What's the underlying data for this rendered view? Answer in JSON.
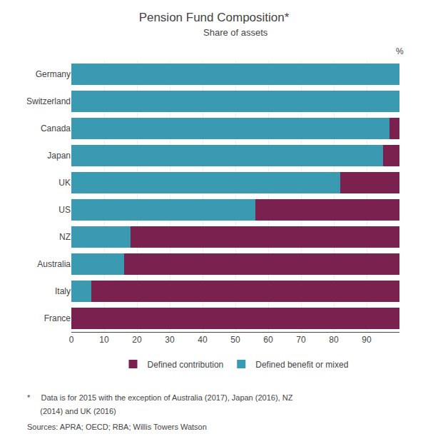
{
  "chart_data": {
    "type": "bar",
    "title": "Pension Fund Composition*",
    "subtitle": "Share of assets",
    "xlabel": "%",
    "categories": [
      "Germany",
      "Switzerland",
      "Canada",
      "Japan",
      "UK",
      "US",
      "NZ",
      "Australia",
      "Italy",
      "France"
    ],
    "series": [
      {
        "name": "Defined benefit or mixed",
        "color": "#3a9ab2",
        "values": [
          100,
          100,
          97,
          95,
          82,
          56,
          18,
          16,
          6,
          0
        ]
      },
      {
        "name": "Defined contribution",
        "color": "#7b2150",
        "values": [
          0,
          0,
          3,
          5,
          18,
          44,
          82,
          84,
          94,
          100
        ]
      }
    ],
    "orientation": "horizontal",
    "stacked": true,
    "xlim": [
      0,
      100
    ],
    "xticks": [
      0,
      10,
      20,
      30,
      40,
      50,
      60,
      70,
      80,
      90
    ],
    "grid": true,
    "legend": "bottom",
    "annotations": [
      "*     Data is for 2015 with the exception of Australia (2017), Japan (2016), NZ",
      "      (2014) and UK (2016)",
      "Sources: APRA; OECD; RBA; Willis Towers Watson"
    ]
  }
}
